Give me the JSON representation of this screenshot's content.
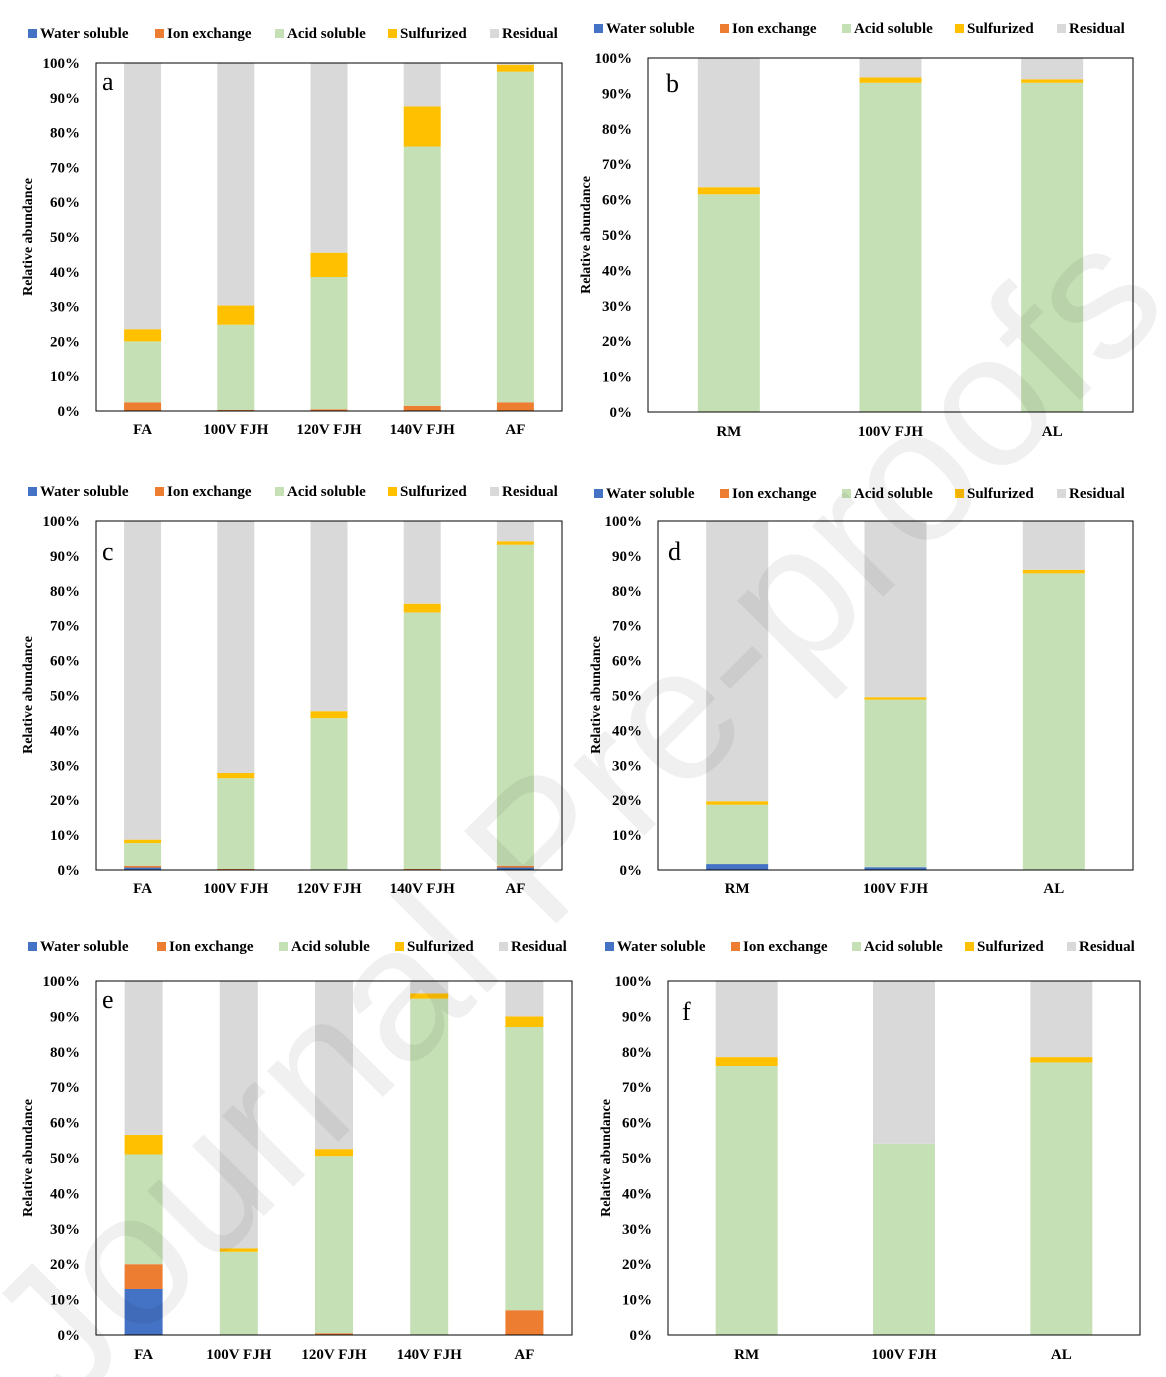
{
  "watermark": "Journal Pre-proofs",
  "colors": {
    "Water soluble": "#4472c4",
    "Ion exchange": "#ed7d31",
    "Acid soluble": "#c5e0b4",
    "Sulfurized": "#ffc000",
    "Residual": "#d9d9d9"
  },
  "chart_data": [
    {
      "type": "bar",
      "stacked": true,
      "panel": "a",
      "ylabel": "Relative abundance",
      "ylim": [
        0,
        100
      ],
      "yticks": [
        "0%",
        "10%",
        "20%",
        "30%",
        "40%",
        "50%",
        "60%",
        "70%",
        "80%",
        "90%",
        "100%"
      ],
      "legend": [
        "Water soluble",
        "Ion exchange",
        "Acid soluble",
        "Sulfurized",
        "Residual"
      ],
      "legend_position": "top",
      "categories": [
        "FA",
        "100V FJH",
        "120V FJH",
        "140V FJH",
        "AF"
      ],
      "series": [
        {
          "name": "Water soluble",
          "values": [
            0,
            0,
            0,
            0,
            0
          ]
        },
        {
          "name": "Ion exchange",
          "values": [
            2.5,
            0.3,
            0.5,
            1.5,
            2.5
          ]
        },
        {
          "name": "Acid soluble",
          "values": [
            17.5,
            24.5,
            38,
            74.5,
            95
          ]
        },
        {
          "name": "Sulfurized",
          "values": [
            3.5,
            5.5,
            7,
            11.5,
            2
          ]
        },
        {
          "name": "Residual",
          "values": [
            76.5,
            69.7,
            54.5,
            12.5,
            0.5
          ]
        }
      ]
    },
    {
      "type": "bar",
      "stacked": true,
      "panel": "b",
      "ylabel": "Relative abundance",
      "ylim": [
        0,
        100
      ],
      "yticks": [
        "0%",
        "10%",
        "20%",
        "30%",
        "40%",
        "50%",
        "60%",
        "70%",
        "80%",
        "90%",
        "100%"
      ],
      "legend": [
        "Water soluble",
        "Ion exchange",
        "Acid soluble",
        "Sulfurized",
        "Residual"
      ],
      "legend_position": "top",
      "categories": [
        "RM",
        "100V FJH",
        "AL"
      ],
      "series": [
        {
          "name": "Water soluble",
          "values": [
            0,
            0,
            0
          ]
        },
        {
          "name": "Ion exchange",
          "values": [
            0,
            0,
            0
          ]
        },
        {
          "name": "Acid soluble",
          "values": [
            61.5,
            93,
            93
          ]
        },
        {
          "name": "Sulfurized",
          "values": [
            2,
            1.5,
            1
          ]
        },
        {
          "name": "Residual",
          "values": [
            36.5,
            5.5,
            6
          ]
        }
      ]
    },
    {
      "type": "bar",
      "stacked": true,
      "panel": "c",
      "ylabel": "Relative abundance",
      "ylim": [
        0,
        100
      ],
      "yticks": [
        "0%",
        "10%",
        "20%",
        "30%",
        "40%",
        "50%",
        "60%",
        "70%",
        "80%",
        "90%",
        "100%"
      ],
      "legend": [
        "Water soluble",
        "Ion exchange",
        "Acid soluble",
        "Sulfurized",
        "Residual"
      ],
      "legend_position": "top",
      "categories": [
        "FA",
        "100V FJH",
        "120V FJH",
        "140V FJH",
        "AF"
      ],
      "series": [
        {
          "name": "Water soluble",
          "values": [
            0.7,
            0,
            0,
            0,
            0.7
          ]
        },
        {
          "name": "Ion exchange",
          "values": [
            0.5,
            0.3,
            0,
            0.3,
            0.5
          ]
        },
        {
          "name": "Acid soluble",
          "values": [
            6.5,
            26,
            43.5,
            73.5,
            92
          ]
        },
        {
          "name": "Sulfurized",
          "values": [
            1,
            1.5,
            2,
            2.5,
            1
          ]
        },
        {
          "name": "Residual",
          "values": [
            91.3,
            72.2,
            54.5,
            23.7,
            5.8
          ]
        }
      ]
    },
    {
      "type": "bar",
      "stacked": true,
      "panel": "d",
      "ylabel": "Relative abundance",
      "ylim": [
        0,
        100
      ],
      "yticks": [
        "0%",
        "10%",
        "20%",
        "30%",
        "40%",
        "50%",
        "60%",
        "70%",
        "80%",
        "90%",
        "100%"
      ],
      "legend": [
        "Water soluble",
        "Ion exchange",
        "Acid soluble",
        "Sulfurized",
        "Residual"
      ],
      "legend_position": "top",
      "categories": [
        "RM",
        "100V FJH",
        "AL"
      ],
      "series": [
        {
          "name": "Water soluble",
          "values": [
            1.7,
            0.8,
            0
          ]
        },
        {
          "name": "Ion exchange",
          "values": [
            0,
            0,
            0
          ]
        },
        {
          "name": "Acid soluble",
          "values": [
            17,
            48,
            85
          ]
        },
        {
          "name": "Sulfurized",
          "values": [
            1,
            0.7,
            1
          ]
        },
        {
          "name": "Residual",
          "values": [
            80.3,
            50.5,
            14
          ]
        }
      ]
    },
    {
      "type": "bar",
      "stacked": true,
      "panel": "e",
      "ylabel": "Relative abundance",
      "ylim": [
        0,
        100
      ],
      "yticks": [
        "0%",
        "10%",
        "20%",
        "30%",
        "40%",
        "50%",
        "60%",
        "70%",
        "80%",
        "90%",
        "100%"
      ],
      "legend": [
        "Water soluble",
        "Ion exchange",
        "Acid soluble",
        "Sulfurized",
        "Residual"
      ],
      "legend_position": "top",
      "categories": [
        "FA",
        "100V FJH",
        "120V FJH",
        "140V FJH",
        "AF"
      ],
      "series": [
        {
          "name": "Water soluble",
          "values": [
            13,
            0,
            0,
            0,
            0
          ]
        },
        {
          "name": "Ion exchange",
          "values": [
            7,
            0,
            0.5,
            0,
            7
          ]
        },
        {
          "name": "Acid soluble",
          "values": [
            31,
            23.5,
            50,
            95,
            80
          ]
        },
        {
          "name": "Sulfurized",
          "values": [
            5.5,
            1,
            2,
            1.5,
            3
          ]
        },
        {
          "name": "Residual",
          "values": [
            43.5,
            75.5,
            47.5,
            3.5,
            10
          ]
        }
      ]
    },
    {
      "type": "bar",
      "stacked": true,
      "panel": "f",
      "ylabel": "Relative abundance",
      "ylim": [
        0,
        100
      ],
      "yticks": [
        "0%",
        "10%",
        "20%",
        "30%",
        "40%",
        "50%",
        "60%",
        "70%",
        "80%",
        "90%",
        "100%"
      ],
      "legend": [
        "Water soluble",
        "Ion exchange",
        "Acid soluble",
        "Sulfurized",
        "Residual"
      ],
      "legend_position": "top",
      "categories": [
        "RM",
        "100V FJH",
        "AL"
      ],
      "series": [
        {
          "name": "Water soluble",
          "values": [
            0,
            0,
            0
          ]
        },
        {
          "name": "Ion exchange",
          "values": [
            0,
            0,
            0
          ]
        },
        {
          "name": "Acid soluble",
          "values": [
            76,
            54,
            77
          ]
        },
        {
          "name": "Sulfurized",
          "values": [
            2.5,
            0,
            1.5
          ]
        },
        {
          "name": "Residual",
          "values": [
            21.5,
            46,
            21.5
          ]
        }
      ]
    }
  ]
}
